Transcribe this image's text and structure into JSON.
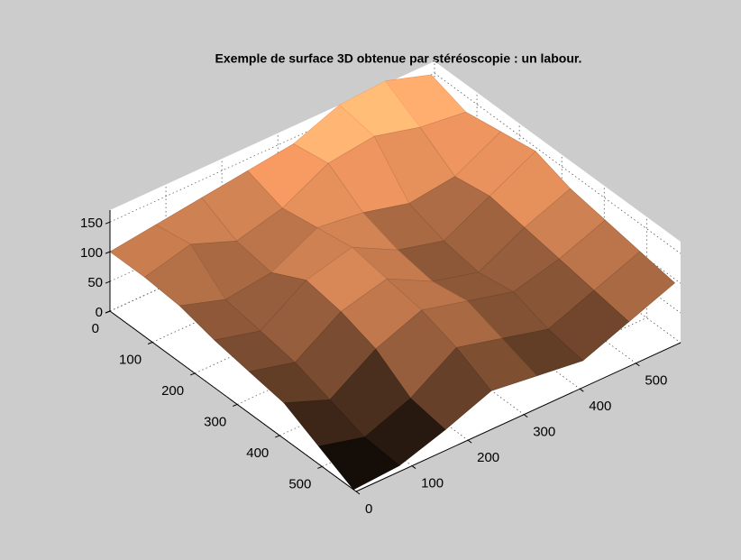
{
  "chart_data": {
    "type": "surface",
    "title": "Exemple de surface 3D obtenue par stéréoscopie : un labour.",
    "x": [
      0,
      82,
      164,
      246,
      328,
      410,
      492,
      574
    ],
    "y": [
      0,
      82,
      164,
      246,
      328,
      410,
      492,
      574
    ],
    "z": [
      [
        100,
        110,
        120,
        130,
        140,
        170,
        175,
        150
      ],
      [
        100,
        120,
        90,
        110,
        150,
        160,
        140,
        130
      ],
      [
        95,
        70,
        80,
        120,
        110,
        90,
        100,
        140
      ],
      [
        80,
        60,
        110,
        130,
        90,
        70,
        110,
        150
      ],
      [
        70,
        50,
        100,
        120,
        80,
        60,
        100,
        130
      ],
      [
        60,
        30,
        80,
        110,
        90,
        70,
        90,
        120
      ],
      [
        30,
        10,
        40,
        90,
        70,
        50,
        80,
        110
      ],
      [
        0,
        5,
        30,
        60,
        50,
        40,
        70,
        100
      ]
    ],
    "xlim": [
      0,
      580
    ],
    "ylim": [
      0,
      580
    ],
    "zlim": [
      0,
      170
    ],
    "xticks": [
      0,
      100,
      200,
      300,
      400,
      500
    ],
    "yticks": [
      0,
      100,
      200,
      300,
      400,
      500
    ],
    "zticks": [
      0,
      50,
      100,
      150
    ],
    "colormap": "copper",
    "grid": true
  }
}
